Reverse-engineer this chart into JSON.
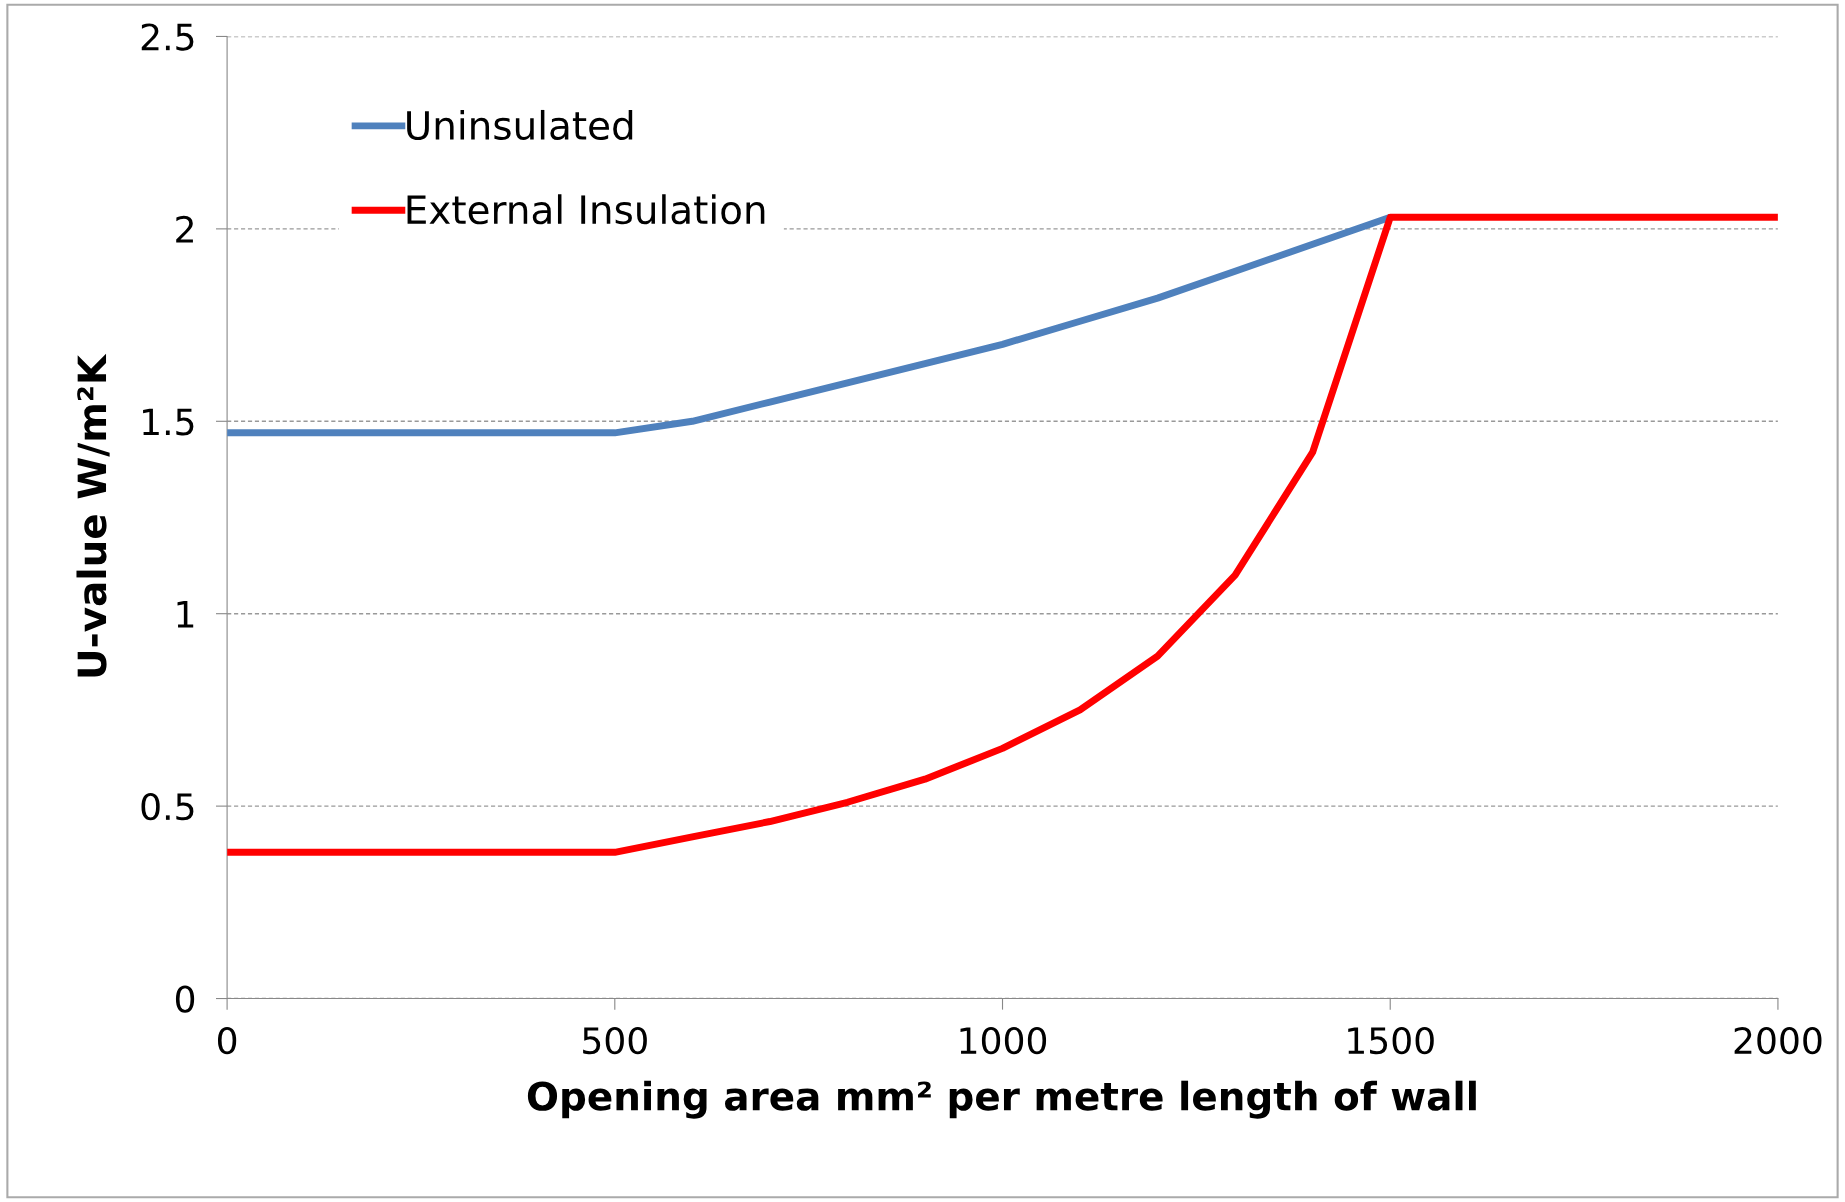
{
  "chart_data": {
    "type": "line",
    "xlabel": "Opening area mm² per metre length of wall",
    "ylabel": "U-value W/m²K",
    "x": [
      0,
      500,
      600,
      700,
      800,
      900,
      1000,
      1100,
      1200,
      1300,
      1400,
      1500,
      2000
    ],
    "series": [
      {
        "name": "Uninsulated",
        "color": "#4f81bd",
        "values": [
          1.47,
          1.47,
          1.5,
          1.55,
          1.6,
          1.65,
          1.7,
          1.76,
          1.82,
          1.89,
          1.96,
          2.03,
          null
        ]
      },
      {
        "name": "External Insulation",
        "color": "#ff0000",
        "values": [
          0.38,
          0.38,
          0.42,
          0.46,
          0.51,
          0.57,
          0.65,
          0.75,
          0.89,
          1.1,
          1.42,
          2.03,
          2.03
        ]
      }
    ],
    "xlim": [
      0,
      2000
    ],
    "xticks": [
      0,
      500,
      1000,
      1500,
      2000
    ],
    "ylim": [
      0,
      2.5
    ],
    "yticks": [
      0,
      0.5,
      1,
      1.5,
      2,
      2.5
    ],
    "grid": "y",
    "legend": "top left",
    "marker": "none",
    "line_style": "solid"
  }
}
